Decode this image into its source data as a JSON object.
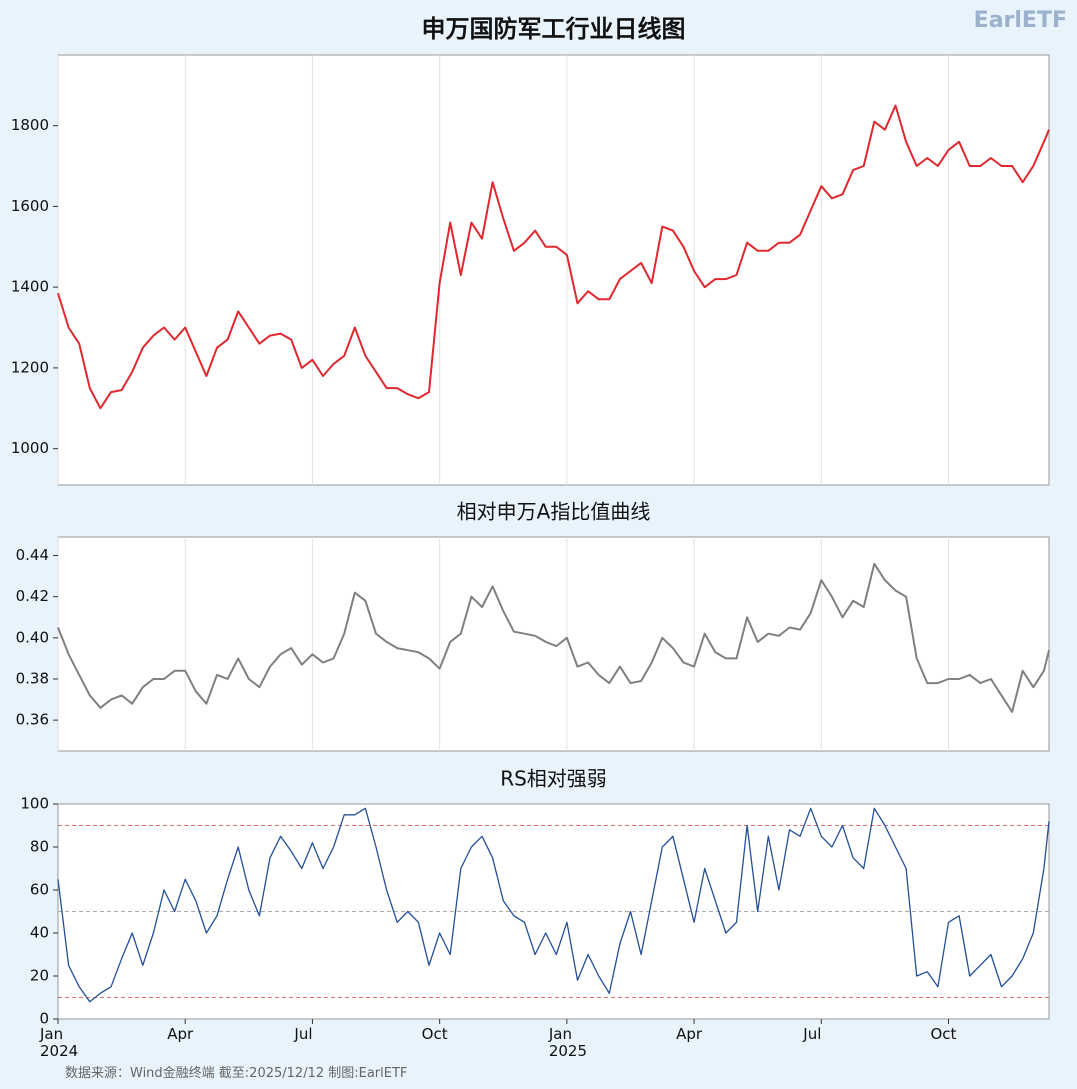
{
  "logo": "EarlETF",
  "source": "数据来源：Wind金融终端 截至:2025/12/12 制图:EarlETF",
  "chart_data": [
    {
      "type": "line",
      "title": "申万国防军工行业日线图",
      "x": [
        0,
        0.25,
        0.5,
        0.75,
        1,
        1.25,
        1.5,
        1.75,
        2,
        2.25,
        2.5,
        2.75,
        3,
        3.25,
        3.5,
        3.75,
        4,
        4.25,
        4.5,
        4.75,
        5,
        5.25,
        5.5,
        5.75,
        6,
        6.25,
        6.5,
        6.75,
        7,
        7.25,
        7.5,
        7.75,
        8,
        8.25,
        8.5,
        8.75,
        9,
        9.25,
        9.5,
        9.75,
        10,
        10.25,
        10.5,
        10.75,
        11,
        11.25,
        11.5,
        11.75,
        12,
        12.25,
        12.5,
        12.75,
        13,
        13.25,
        13.5,
        13.75,
        14,
        14.25,
        14.5,
        14.75,
        15,
        15.25,
        15.5,
        15.75,
        16,
        16.25,
        16.5,
        16.75,
        17,
        17.25,
        17.5,
        17.75,
        18,
        18.25,
        18.5,
        18.75,
        19,
        19.25,
        19.5,
        19.75,
        20,
        20.25,
        20.5,
        20.75,
        21,
        21.25,
        21.5,
        21.75,
        22,
        22.25,
        22.5,
        22.75,
        23,
        23.25,
        23.37
      ],
      "series": [
        {
          "color": "#e0282e",
          "values": [
            1385,
            1300,
            1260,
            1150,
            1100,
            1140,
            1145,
            1190,
            1250,
            1280,
            1300,
            1270,
            1300,
            1240,
            1180,
            1250,
            1270,
            1340,
            1300,
            1260,
            1280,
            1285,
            1270,
            1200,
            1220,
            1180,
            1210,
            1230,
            1300,
            1230,
            1190,
            1150,
            1150,
            1135,
            1125,
            1140,
            1410,
            1560,
            1430,
            1560,
            1520,
            1660,
            1570,
            1490,
            1510,
            1540,
            1500,
            1500,
            1480,
            1360,
            1390,
            1370,
            1370,
            1420,
            1440,
            1460,
            1410,
            1550,
            1540,
            1500,
            1440,
            1400,
            1420,
            1420,
            1430,
            1510,
            1490,
            1490,
            1510,
            1510,
            1530,
            1590,
            1650,
            1620,
            1630,
            1690,
            1700,
            1810,
            1790,
            1850,
            1760,
            1700,
            1720,
            1700,
            1740,
            1760,
            1700,
            1700,
            1720,
            1700,
            1700,
            1660,
            1700,
            1760,
            1790
          ]
        }
      ],
      "xlim": [
        0,
        23.37
      ],
      "xticks": [
        0,
        3,
        6,
        9,
        12,
        15,
        18,
        21
      ],
      "grid": "x",
      "ylim": [
        910,
        1975
      ],
      "yticks": [
        1000,
        1200,
        1400,
        1600,
        1800
      ]
    },
    {
      "type": "line",
      "title": "相对申万A指比值曲线",
      "x": [
        0,
        0.25,
        0.5,
        0.75,
        1,
        1.25,
        1.5,
        1.75,
        2,
        2.25,
        2.5,
        2.75,
        3,
        3.25,
        3.5,
        3.75,
        4,
        4.25,
        4.5,
        4.75,
        5,
        5.25,
        5.5,
        5.75,
        6,
        6.25,
        6.5,
        6.75,
        7,
        7.25,
        7.5,
        7.75,
        8,
        8.25,
        8.5,
        8.75,
        9,
        9.25,
        9.5,
        9.75,
        10,
        10.25,
        10.5,
        10.75,
        11,
        11.25,
        11.5,
        11.75,
        12,
        12.25,
        12.5,
        12.75,
        13,
        13.25,
        13.5,
        13.75,
        14,
        14.25,
        14.5,
        14.75,
        15,
        15.25,
        15.5,
        15.75,
        16,
        16.25,
        16.5,
        16.75,
        17,
        17.25,
        17.5,
        17.75,
        18,
        18.25,
        18.5,
        18.75,
        19,
        19.25,
        19.5,
        19.75,
        20,
        20.25,
        20.5,
        20.75,
        21,
        21.25,
        21.5,
        21.75,
        22,
        22.25,
        22.5,
        22.75,
        23,
        23.25,
        23.37
      ],
      "series": [
        {
          "color": "#808080",
          "values": [
            0.405,
            0.392,
            0.382,
            0.372,
            0.366,
            0.37,
            0.372,
            0.368,
            0.376,
            0.38,
            0.38,
            0.384,
            0.384,
            0.374,
            0.368,
            0.382,
            0.38,
            0.39,
            0.38,
            0.376,
            0.386,
            0.392,
            0.395,
            0.387,
            0.392,
            0.388,
            0.39,
            0.402,
            0.422,
            0.418,
            0.402,
            0.398,
            0.395,
            0.394,
            0.393,
            0.39,
            0.385,
            0.398,
            0.402,
            0.42,
            0.415,
            0.425,
            0.413,
            0.403,
            0.402,
            0.401,
            0.398,
            0.396,
            0.4,
            0.386,
            0.388,
            0.382,
            0.378,
            0.386,
            0.378,
            0.379,
            0.388,
            0.4,
            0.395,
            0.388,
            0.386,
            0.402,
            0.393,
            0.39,
            0.39,
            0.41,
            0.398,
            0.402,
            0.401,
            0.405,
            0.404,
            0.412,
            0.428,
            0.42,
            0.41,
            0.418,
            0.415,
            0.436,
            0.428,
            0.423,
            0.42,
            0.39,
            0.378,
            0.378,
            0.38,
            0.38,
            0.382,
            0.378,
            0.38,
            0.372,
            0.364,
            0.384,
            0.376,
            0.384,
            0.394
          ]
        }
      ],
      "xlim": [
        0,
        23.37
      ],
      "xticks": [
        0,
        3,
        6,
        9,
        12,
        15,
        18,
        21
      ],
      "grid": "x",
      "ylim": [
        0.345,
        0.449
      ],
      "yticks": [
        0.36,
        0.38,
        {
          "value": 0.4,
          "label": "0.40"
        },
        0.42,
        0.44
      ]
    },
    {
      "type": "line",
      "title": "RS相对强弱",
      "x": [
        0,
        0.25,
        0.5,
        0.75,
        1,
        1.25,
        1.5,
        1.75,
        2,
        2.25,
        2.5,
        2.75,
        3,
        3.25,
        3.5,
        3.75,
        4,
        4.25,
        4.5,
        4.75,
        5,
        5.25,
        5.5,
        5.75,
        6,
        6.25,
        6.5,
        6.75,
        7,
        7.25,
        7.5,
        7.75,
        8,
        8.25,
        8.5,
        8.75,
        9,
        9.25,
        9.5,
        9.75,
        10,
        10.25,
        10.5,
        10.75,
        11,
        11.25,
        11.5,
        11.75,
        12,
        12.25,
        12.5,
        12.75,
        13,
        13.25,
        13.5,
        13.75,
        14,
        14.25,
        14.5,
        14.75,
        15,
        15.25,
        15.5,
        15.75,
        16,
        16.25,
        16.5,
        16.75,
        17,
        17.25,
        17.5,
        17.75,
        18,
        18.25,
        18.5,
        18.75,
        19,
        19.25,
        19.5,
        19.75,
        20,
        20.25,
        20.5,
        20.75,
        21,
        21.25,
        21.5,
        21.75,
        22,
        22.25,
        22.5,
        22.75,
        23,
        23.25,
        23.37
      ],
      "series": [
        {
          "color": "#234f98",
          "values": [
            65,
            25,
            15,
            8,
            12,
            15,
            28,
            40,
            25,
            40,
            60,
            50,
            65,
            55,
            40,
            48,
            65,
            80,
            60,
            48,
            75,
            85,
            78,
            70,
            82,
            70,
            80,
            95,
            95,
            98,
            80,
            60,
            45,
            50,
            45,
            25,
            40,
            30,
            70,
            80,
            85,
            75,
            55,
            48,
            45,
            30,
            40,
            30,
            45,
            18,
            30,
            20,
            12,
            35,
            50,
            30,
            55,
            80,
            85,
            65,
            45,
            70,
            55,
            40,
            45,
            90,
            50,
            85,
            60,
            88,
            85,
            98,
            85,
            80,
            90,
            75,
            70,
            98,
            90,
            80,
            70,
            20,
            22,
            15,
            45,
            48,
            20,
            25,
            30,
            15,
            20,
            28,
            40,
            70,
            92
          ]
        }
      ],
      "xlim": [
        0,
        23.37
      ],
      "xticks": [
        {
          "value": 0,
          "label": "Jan\n2024"
        },
        {
          "value": 3,
          "label": "Apr"
        },
        {
          "value": 6,
          "label": "Jul"
        },
        {
          "value": 9,
          "label": "Oct"
        },
        {
          "value": 12,
          "label": "Jan\n2025"
        },
        {
          "value": 15,
          "label": "Apr"
        },
        {
          "value": 18,
          "label": "Jul"
        },
        {
          "value": 21,
          "label": "Oct"
        }
      ],
      "grid": false,
      "ylim": [
        0,
        100
      ],
      "yticks": [
        0,
        20,
        40,
        60,
        80,
        100
      ],
      "hlines": [
        {
          "value": 10,
          "color": "#e87070"
        },
        {
          "value": 50,
          "color": "#aaaaaa"
        },
        {
          "value": 90,
          "color": "#e87070"
        }
      ]
    }
  ]
}
